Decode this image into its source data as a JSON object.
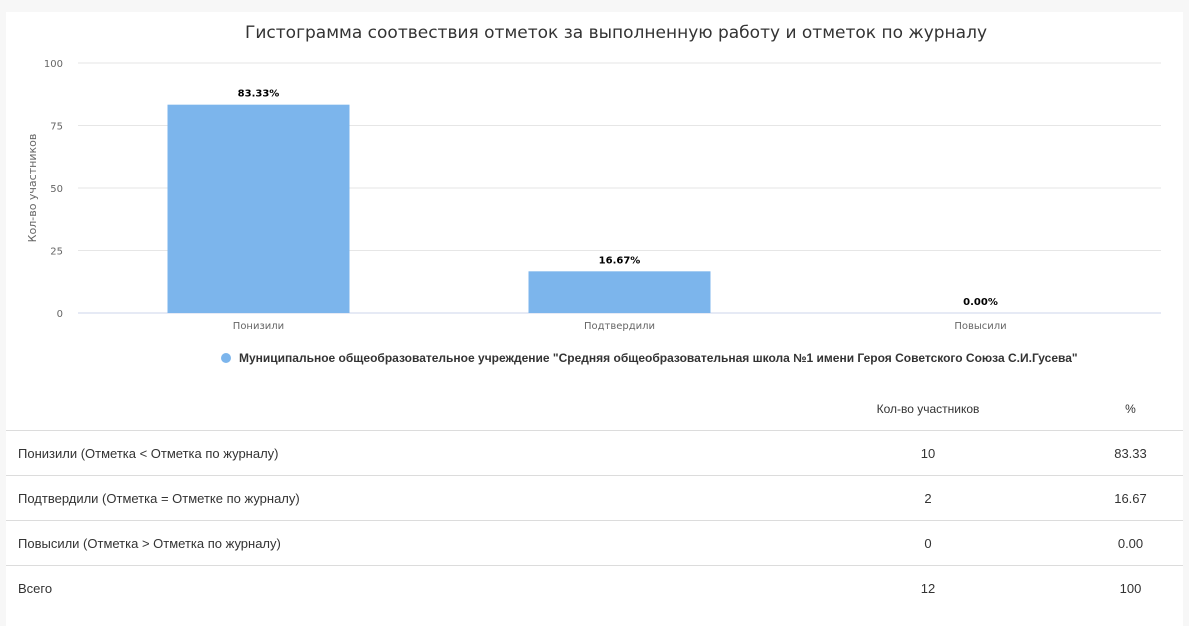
{
  "chart_data": {
    "type": "bar",
    "title": "Гистограмма соотвествия отметок за выполненную работу и отметок по журналу",
    "ylabel": "Кол-во участников",
    "xlabel": "",
    "ylim": [
      0,
      100
    ],
    "yticks": [
      0,
      25,
      50,
      75,
      100
    ],
    "categories": [
      "Понизили",
      "Подтвердили",
      "Повысили"
    ],
    "series": [
      {
        "name": "Муниципальное общеобразовательное учреждение \"Средняя общеобразовательная школа №1 имени Героя Советского Союза С.И.Гусева\"",
        "values": [
          83.33,
          16.67,
          0
        ],
        "labels": [
          "83.33%",
          "16.67%",
          "0.00%"
        ],
        "color": "#7cb5ec"
      }
    ],
    "grid": true,
    "legend_position": "bottom-center"
  },
  "table": {
    "headers": [
      "",
      "Кол-во участников",
      "%"
    ],
    "rows": [
      [
        "Понизили (Отметка < Отметка по журналу)",
        "10",
        "83.33"
      ],
      [
        "Подтвердили (Отметка = Отметке по журналу)",
        "2",
        "16.67"
      ],
      [
        "Повысили (Отметка > Отметка по журналу)",
        "0",
        "0.00"
      ],
      [
        "Всего",
        "12",
        "100"
      ]
    ]
  }
}
